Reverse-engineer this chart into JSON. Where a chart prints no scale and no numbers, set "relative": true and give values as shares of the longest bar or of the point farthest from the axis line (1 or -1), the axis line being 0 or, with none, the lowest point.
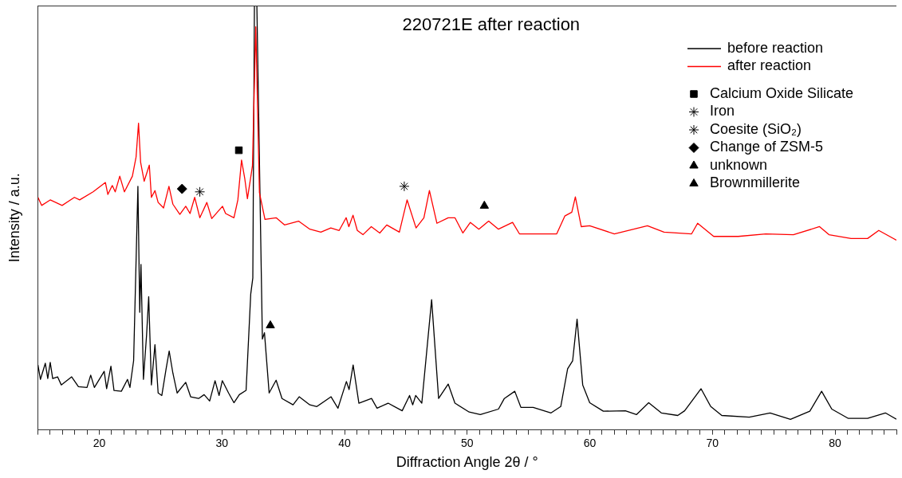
{
  "chart_data": {
    "type": "line",
    "title": "220721E after reaction",
    "xlabel": "Diffraction Angle 2θ / °",
    "ylabel": "Intensity / a.u.",
    "relative": true,
    "xlim": [
      15,
      85
    ],
    "xticks": [
      {
        "value": 15,
        "label": null
      },
      {
        "value": 16,
        "label": null
      },
      {
        "value": 17,
        "label": null
      },
      {
        "value": 18,
        "label": null
      },
      {
        "value": 19,
        "label": null
      },
      20,
      {
        "value": 21,
        "label": null
      },
      {
        "value": 22,
        "label": null
      },
      {
        "value": 23,
        "label": null
      },
      {
        "value": 24,
        "label": null
      },
      {
        "value": 25,
        "label": null
      },
      {
        "value": 26,
        "label": null
      },
      {
        "value": 27,
        "label": null
      },
      {
        "value": 28,
        "label": null
      },
      {
        "value": 29,
        "label": null
      },
      30,
      {
        "value": 31,
        "label": null
      },
      {
        "value": 32,
        "label": null
      },
      {
        "value": 33,
        "label": null
      },
      {
        "value": 34,
        "label": null
      },
      {
        "value": 35,
        "label": null
      },
      {
        "value": 36,
        "label": null
      },
      {
        "value": 37,
        "label": null
      },
      {
        "value": 38,
        "label": null
      },
      {
        "value": 39,
        "label": null
      },
      40,
      {
        "value": 41,
        "label": null
      },
      {
        "value": 42,
        "label": null
      },
      {
        "value": 43,
        "label": null
      },
      {
        "value": 44,
        "label": null
      },
      {
        "value": 45,
        "label": null
      },
      {
        "value": 46,
        "label": null
      },
      {
        "value": 47,
        "label": null
      },
      {
        "value": 48,
        "label": null
      },
      {
        "value": 49,
        "label": null
      },
      50,
      {
        "value": 51,
        "label": null
      },
      {
        "value": 52,
        "label": null
      },
      {
        "value": 53,
        "label": null
      },
      {
        "value": 54,
        "label": null
      },
      {
        "value": 55,
        "label": null
      },
      {
        "value": 56,
        "label": null
      },
      {
        "value": 57,
        "label": null
      },
      {
        "value": 58,
        "label": null
      },
      {
        "value": 59,
        "label": null
      },
      60,
      {
        "value": 61,
        "label": null
      },
      {
        "value": 62,
        "label": null
      },
      {
        "value": 63,
        "label": null
      },
      {
        "value": 64,
        "label": null
      },
      {
        "value": 65,
        "label": null
      },
      {
        "value": 66,
        "label": null
      },
      {
        "value": 67,
        "label": null
      },
      {
        "value": 68,
        "label": null
      },
      {
        "value": 69,
        "label": null
      },
      70,
      {
        "value": 71,
        "label": null
      },
      {
        "value": 72,
        "label": null
      },
      {
        "value": 73,
        "label": null
      },
      {
        "value": 74,
        "label": null
      },
      {
        "value": 75,
        "label": null
      },
      {
        "value": 76,
        "label": null
      },
      {
        "value": 77,
        "label": null
      },
      {
        "value": 78,
        "label": null
      },
      {
        "value": 79,
        "label": null
      },
      80,
      {
        "value": 81,
        "label": null
      },
      {
        "value": 82,
        "label": null
      },
      {
        "value": 83,
        "label": null
      },
      {
        "value": 84,
        "label": null
      },
      {
        "value": 85,
        "label": null
      }
    ],
    "legend": "top right",
    "grid": false,
    "marker": "none",
    "series": [
      {
        "name": "before reaction",
        "type": "line",
        "color": "#000000",
        "x": [
          15.0,
          15.2,
          15.6,
          15.8,
          16.0,
          16.2,
          16.6,
          16.9,
          17.75,
          18.3,
          19.0,
          19.3,
          19.6,
          20.4,
          20.6,
          20.95,
          21.2,
          21.8,
          22.3,
          22.5,
          22.8,
          23.15,
          23.3,
          23.4,
          23.6,
          23.86,
          24.03,
          24.25,
          24.54,
          24.8,
          25.1,
          25.45,
          25.7,
          26.0,
          26.35,
          27.05,
          27.45,
          28.1,
          28.55,
          29.0,
          29.44,
          29.77,
          30.03,
          30.54,
          30.98,
          31.42,
          31.97,
          32.35,
          32.52,
          32.65,
          32.85,
          33.3,
          33.47,
          33.85,
          34.42,
          34.9,
          35.8,
          36.3,
          37.17,
          37.74,
          38.9,
          39.46,
          40.15,
          40.37,
          40.7,
          41.17,
          42.2,
          42.65,
          43.55,
          44.7,
          45.3,
          45.56,
          45.8,
          46.3,
          47.1,
          47.67,
          48.45,
          49.0,
          50.16,
          51.07,
          52.55,
          53.03,
          53.88,
          54.38,
          55.38,
          56.84,
          57.63,
          58.19,
          58.6,
          58.96,
          59.42,
          59.99,
          61.1,
          62.9,
          63.8,
          64.8,
          65.83,
          67.17,
          67.73,
          69.07,
          69.86,
          70.76,
          73.0,
          74.7,
          76.36,
          77.94,
          78.9,
          79.73,
          81.08,
          82.65,
          84.1,
          85.0
        ],
        "values": [
          0.153,
          0.119,
          0.157,
          0.121,
          0.159,
          0.121,
          0.125,
          0.106,
          0.125,
          0.102,
          0.1,
          0.129,
          0.1,
          0.138,
          0.097,
          0.15,
          0.093,
          0.091,
          0.119,
          0.1,
          0.163,
          0.574,
          0.277,
          0.39,
          0.119,
          0.225,
          0.314,
          0.106,
          0.201,
          0.087,
          0.081,
          0.144,
          0.186,
          0.134,
          0.087,
          0.112,
          0.078,
          0.074,
          0.083,
          0.068,
          0.116,
          0.081,
          0.116,
          0.087,
          0.064,
          0.083,
          0.093,
          0.32,
          0.358,
          1.0,
          1.0,
          0.214,
          0.229,
          0.087,
          0.117,
          0.074,
          0.059,
          0.078,
          0.059,
          0.055,
          0.078,
          0.051,
          0.114,
          0.095,
          0.153,
          0.063,
          0.074,
          0.051,
          0.063,
          0.045,
          0.081,
          0.059,
          0.081,
          0.063,
          0.307,
          0.074,
          0.108,
          0.063,
          0.042,
          0.036,
          0.049,
          0.074,
          0.091,
          0.053,
          0.053,
          0.04,
          0.055,
          0.144,
          0.163,
          0.261,
          0.106,
          0.064,
          0.044,
          0.045,
          0.036,
          0.064,
          0.04,
          0.034,
          0.045,
          0.097,
          0.055,
          0.034,
          0.03,
          0.04,
          0.025,
          0.044,
          0.091,
          0.049,
          0.027,
          0.027,
          0.04,
          0.025
        ]
      },
      {
        "name": "after reaction",
        "type": "line",
        "color": "#ff0000",
        "x": [
          15.0,
          15.3,
          16.0,
          16.97,
          17.97,
          18.4,
          19.5,
          20.5,
          20.7,
          21.06,
          21.3,
          21.67,
          22.05,
          22.7,
          23.0,
          23.2,
          23.37,
          23.66,
          24.08,
          24.25,
          24.54,
          24.8,
          25.24,
          25.68,
          26.0,
          26.57,
          27.05,
          27.4,
          27.78,
          28.2,
          28.77,
          29.17,
          30.05,
          30.3,
          30.98,
          31.3,
          31.6,
          31.86,
          32.08,
          32.4,
          32.49,
          32.76,
          33.06,
          33.51,
          34.42,
          35.1,
          36.25,
          37.17,
          38.07,
          38.88,
          39.56,
          40.13,
          40.35,
          40.69,
          41.04,
          41.5,
          42.18,
          42.87,
          43.44,
          44.47,
          45.1,
          45.83,
          46.47,
          46.92,
          47.53,
          48.45,
          49.0,
          49.65,
          50.26,
          50.95,
          51.75,
          52.55,
          53.7,
          54.26,
          57.3,
          57.96,
          58.53,
          58.82,
          59.3,
          59.99,
          62.0,
          64.7,
          66.05,
          68.3,
          68.79,
          70.1,
          72.1,
          74.35,
          76.6,
          78.73,
          79.5,
          81.3,
          82.65,
          83.56,
          85.0
        ],
        "values": [
          0.548,
          0.529,
          0.542,
          0.529,
          0.548,
          0.542,
          0.561,
          0.583,
          0.555,
          0.576,
          0.561,
          0.598,
          0.561,
          0.598,
          0.643,
          0.723,
          0.631,
          0.586,
          0.624,
          0.548,
          0.564,
          0.536,
          0.523,
          0.574,
          0.532,
          0.508,
          0.527,
          0.51,
          0.548,
          0.5,
          0.536,
          0.498,
          0.527,
          0.51,
          0.5,
          0.542,
          0.636,
          0.593,
          0.545,
          0.605,
          0.623,
          0.95,
          0.559,
          0.496,
          0.5,
          0.483,
          0.492,
          0.473,
          0.466,
          0.476,
          0.47,
          0.5,
          0.479,
          0.506,
          0.47,
          0.46,
          0.479,
          0.464,
          0.483,
          0.466,
          0.542,
          0.476,
          0.5,
          0.564,
          0.487,
          0.5,
          0.5,
          0.464,
          0.489,
          0.473,
          0.492,
          0.473,
          0.489,
          0.462,
          0.462,
          0.504,
          0.513,
          0.549,
          0.479,
          0.481,
          0.462,
          0.481,
          0.466,
          0.462,
          0.487,
          0.456,
          0.456,
          0.462,
          0.46,
          0.479,
          0.46,
          0.451,
          0.451,
          0.47,
          0.447
        ]
      },
      {
        "name": "Calcium Oxide Silicate",
        "type": "scatter",
        "marker": "square",
        "color": "#000000",
        "x": [
          31.38
        ],
        "values": [
          0.659
        ]
      },
      {
        "name": "Iron",
        "type": "scatter",
        "marker": "cross",
        "color": "#000000",
        "x": [
          44.87
        ],
        "values": [
          0.574
        ]
      },
      {
        "name": "Coesite (SiO₂)",
        "type": "scatter",
        "marker": "cross",
        "color": "#000000",
        "x": [
          28.2
        ],
        "values": [
          0.561
        ]
      },
      {
        "name": "Change of ZSM-5",
        "type": "scatter",
        "marker": "diamond",
        "color": "#000000",
        "x": [
          26.75
        ],
        "values": [
          0.568
        ]
      },
      {
        "name": "unknown",
        "type": "scatter",
        "marker": "triangle",
        "color": "#000000",
        "x": [
          51.4
        ],
        "values": [
          0.528
        ]
      },
      {
        "name": "Brownmillerite",
        "type": "scatter",
        "marker": "triangle",
        "color": "#000000",
        "x": [
          33.95
        ],
        "values": [
          0.246
        ]
      }
    ]
  }
}
